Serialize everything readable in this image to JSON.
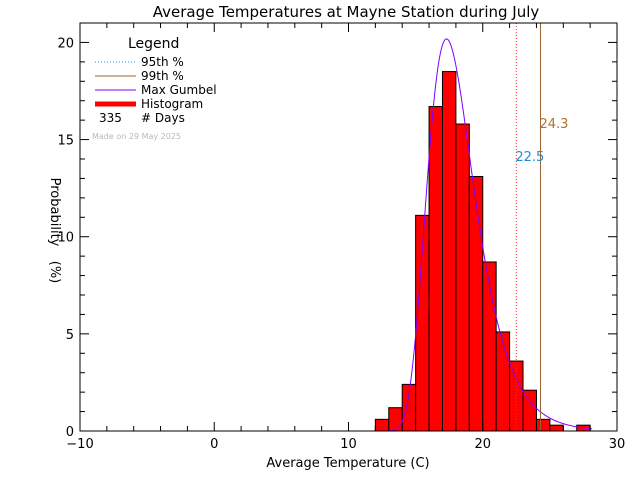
{
  "chart_data": {
    "type": "bar",
    "title": "Average Temperatures at Mayne Station during July",
    "xlabel": "Average Temperature (C)",
    "ylabel_top": "Probability",
    "ylabel_bottom": "(%)",
    "xlim": [
      -10,
      30
    ],
    "ylim": [
      0,
      21
    ],
    "x_ticks": [
      -10,
      0,
      10,
      20,
      30
    ],
    "y_ticks": [
      0,
      5,
      10,
      15,
      20
    ],
    "legend": {
      "title": "Legend",
      "items": [
        "95th %",
        "99th %",
        "Max Gumbel",
        "Histogram"
      ],
      "days_count": "335",
      "days_label": "# Days",
      "note": "Made on 29 May 2025"
    },
    "bin_width": 1,
    "histogram": [
      {
        "x": 12,
        "y": 0.6
      },
      {
        "x": 13,
        "y": 1.2
      },
      {
        "x": 14,
        "y": 2.4
      },
      {
        "x": 15,
        "y": 11.1
      },
      {
        "x": 16,
        "y": 16.7
      },
      {
        "x": 17,
        "y": 18.5
      },
      {
        "x": 18,
        "y": 15.8
      },
      {
        "x": 19,
        "y": 13.1
      },
      {
        "x": 20,
        "y": 8.7
      },
      {
        "x": 21,
        "y": 5.1
      },
      {
        "x": 22,
        "y": 3.6
      },
      {
        "x": 23,
        "y": 2.1
      },
      {
        "x": 24,
        "y": 0.6
      },
      {
        "x": 25,
        "y": 0.3
      },
      {
        "x": 27,
        "y": 0.3
      }
    ],
    "gumbel": {
      "mu": 17.3,
      "beta": 1.75,
      "scale": 96
    },
    "percentile_95": {
      "value": 22.5,
      "label": "22.5",
      "color": "#ff2a2a",
      "label_color": "#1f8bd0"
    },
    "percentile_99": {
      "value": 24.3,
      "label": "24.3",
      "color": "#9a6230",
      "label_color": "#b0742d"
    },
    "colors": {
      "histogram": "#ff0000",
      "gumbel": "#7f00ff",
      "legend_95": "#1f8bd0",
      "note": "#b8b8b8"
    }
  }
}
